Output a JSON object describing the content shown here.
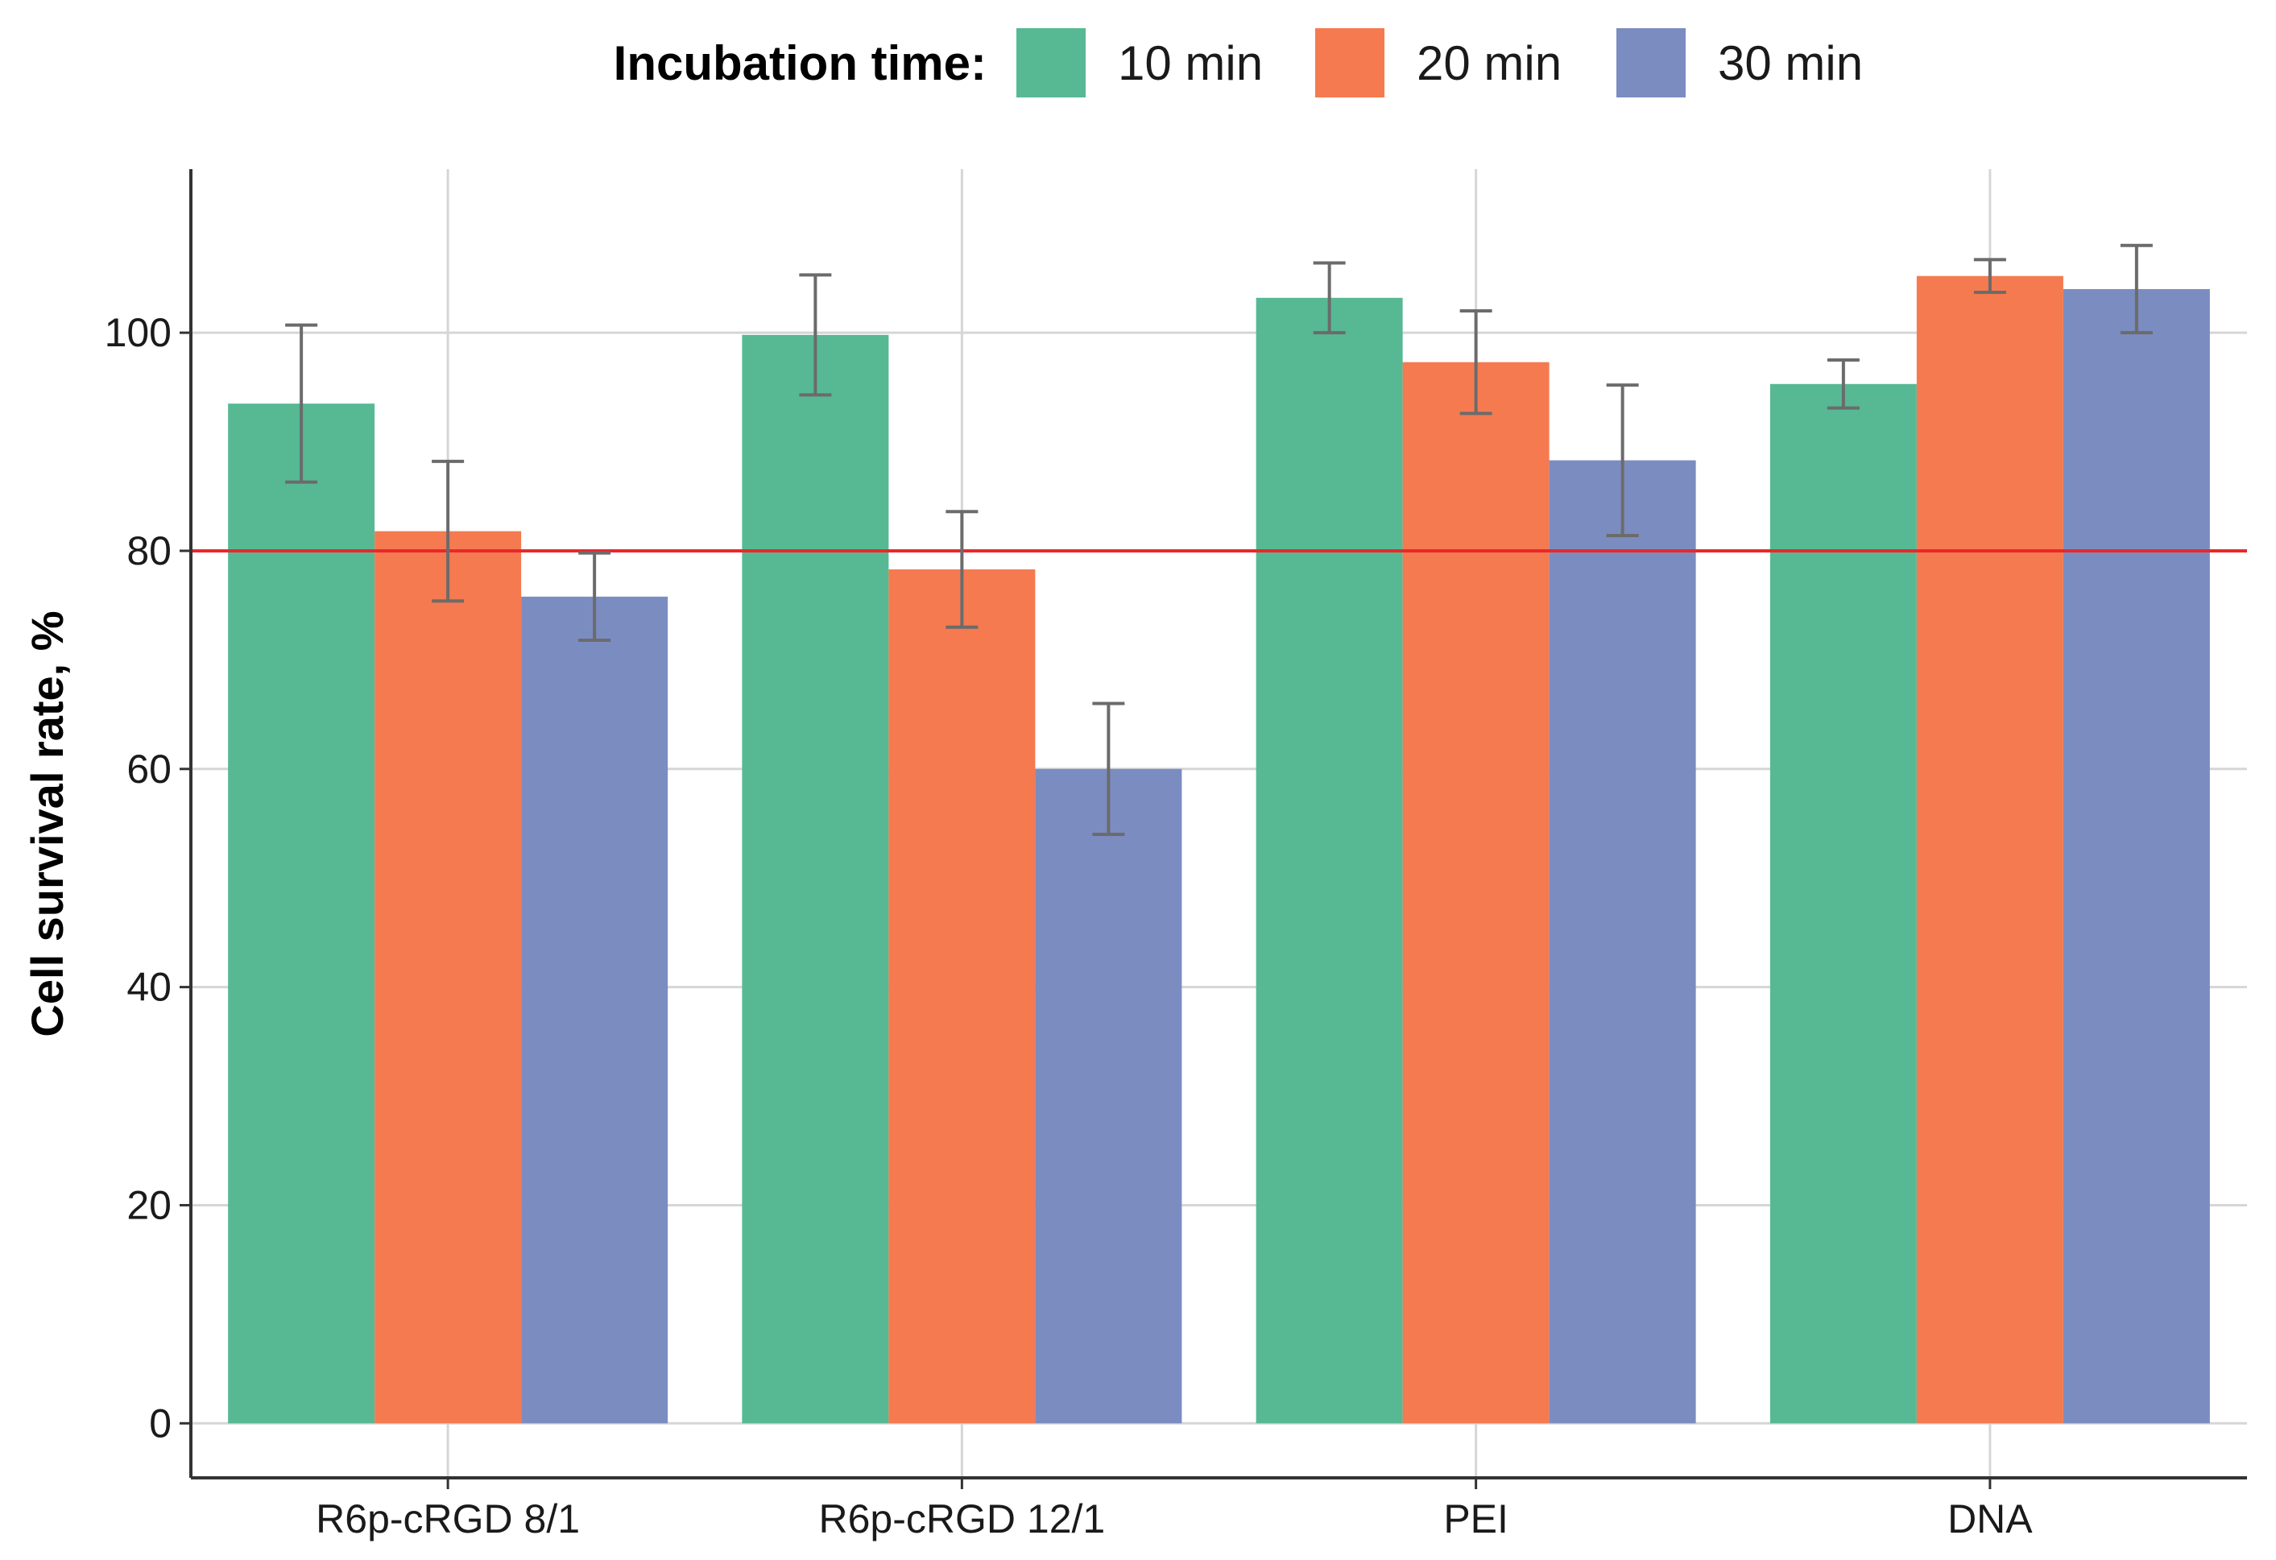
{
  "chart_data": {
    "type": "bar",
    "title": "",
    "xlabel": "",
    "ylabel": "Cell survival rate, %",
    "ylim": [
      -5,
      115
    ],
    "yticks": [
      0,
      20,
      40,
      60,
      80,
      100
    ],
    "grid": true,
    "legend": {
      "title": "Incubation time:",
      "placement": "top-center"
    },
    "categories": [
      "R6p-cRGD 8/1",
      "R6p-cRGD 12/1",
      "PEI",
      "DNA"
    ],
    "series": [
      {
        "name": "10 min",
        "color": "#57b994",
        "values": [
          93.5,
          99.8,
          103.2,
          95.3
        ],
        "errors": [
          7.2,
          5.5,
          3.2,
          2.2
        ]
      },
      {
        "name": "20 min",
        "color": "#f57a50",
        "values": [
          81.8,
          78.3,
          97.3,
          105.2
        ],
        "errors": [
          6.4,
          5.3,
          4.7,
          1.5
        ]
      },
      {
        "name": "30 min",
        "color": "#7b8cc1",
        "values": [
          75.8,
          60.0,
          88.3,
          104.0
        ],
        "errors": [
          4.0,
          6.0,
          6.9,
          4.0
        ]
      }
    ],
    "reference_line": {
      "y": 80,
      "color": "#e8282b"
    }
  }
}
